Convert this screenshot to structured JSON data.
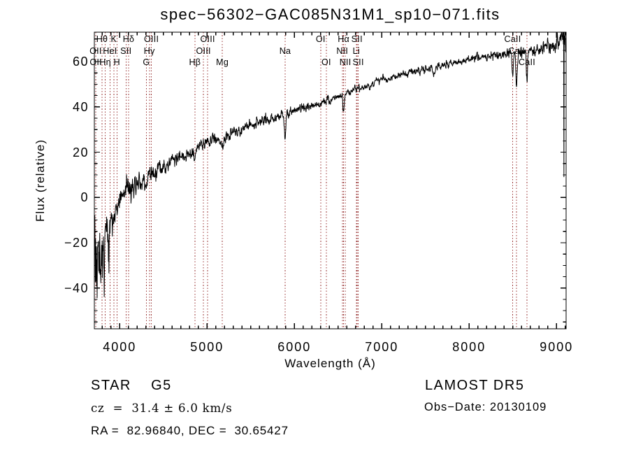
{
  "annotations": {
    "class_label": "STAR    G5",
    "cz_label": "cz  =  31.4 ± 6.0 km/s",
    "radec_label": "RA =  82.96840, DEC =  30.65427",
    "survey_label": "LAMOST DR5",
    "obs_date_label": "Obs−Date: 20130109"
  },
  "colors": {
    "background": "#ffffff",
    "axis": "#000000",
    "spectrum": "#000000",
    "line_marker": "#993333"
  },
  "chart_data": {
    "type": "line",
    "title": "spec−56302−GAC085N31M1_sp10−071.fits",
    "xlabel": "Wavelength (Å)",
    "ylabel": "Flux (relative)",
    "xlim": [
      3710,
      9110
    ],
    "ylim": [
      -58,
      73
    ],
    "x_ticks": [
      4000,
      5000,
      6000,
      7000,
      8000,
      9000
    ],
    "y_ticks": [
      -40,
      -20,
      0,
      20,
      40,
      60
    ],
    "x_minor_step": 100,
    "y_minor_step": 5,
    "grid": false,
    "spectral_line_markers": [
      {
        "label": "OII",
        "wavelength": 3725,
        "row": 2
      },
      {
        "label": "OII",
        "wavelength": 3727,
        "row": 3
      },
      {
        "label": "Hθ",
        "wavelength": 3798,
        "row": 1
      },
      {
        "label": "Hη",
        "wavelength": 3835,
        "row": 3
      },
      {
        "label": "HeI",
        "wavelength": 3889,
        "row": 2
      },
      {
        "label": "K",
        "wavelength": 3933,
        "row": 1
      },
      {
        "label": "H",
        "wavelength": 3968,
        "row": 3
      },
      {
        "label": "SII",
        "wavelength": 4072,
        "row": 2
      },
      {
        "label": "Hδ",
        "wavelength": 4102,
        "row": 1
      },
      {
        "label": "G",
        "wavelength": 4305,
        "row": 3
      },
      {
        "label": "Hγ",
        "wavelength": 4340,
        "row": 2
      },
      {
        "label": "OIII",
        "wavelength": 4363,
        "row": 1
      },
      {
        "label": "Hβ",
        "wavelength": 4861,
        "row": 3
      },
      {
        "label": "OIII",
        "wavelength": 4959,
        "row": 2
      },
      {
        "label": "OIII",
        "wavelength": 5007,
        "row": 1
      },
      {
        "label": "Mg",
        "wavelength": 5175,
        "row": 3
      },
      {
        "label": "Na",
        "wavelength": 5894,
        "row": 2
      },
      {
        "label": "OI",
        "wavelength": 6300,
        "row": 1
      },
      {
        "label": "OI",
        "wavelength": 6365,
        "row": 3
      },
      {
        "label": "NII",
        "wavelength": 6548,
        "row": 2
      },
      {
        "label": "Hα",
        "wavelength": 6563,
        "row": 1
      },
      {
        "label": "NII",
        "wavelength": 6583,
        "row": 3
      },
      {
        "label": "Li",
        "wavelength": 6708,
        "row": 2
      },
      {
        "label": "SII",
        "wavelength": 6716,
        "row": 1
      },
      {
        "label": "SII",
        "wavelength": 6731,
        "row": 3
      },
      {
        "label": "CaII",
        "wavelength": 8498,
        "row": 1
      },
      {
        "label": "CaII",
        "wavelength": 8542,
        "row": 2
      },
      {
        "label": "CaII",
        "wavelength": 8662,
        "row": 3
      }
    ],
    "series": [
      {
        "name": "observed-spectrum",
        "sample_step": 3,
        "continuum_points": [
          [
            3712,
            -10
          ],
          [
            3740,
            -18
          ],
          [
            3770,
            -24
          ],
          [
            3800,
            -20
          ],
          [
            3830,
            -16
          ],
          [
            3860,
            -13
          ],
          [
            3890,
            -11
          ],
          [
            3920,
            -9
          ],
          [
            3950,
            -6
          ],
          [
            3980,
            -3
          ],
          [
            4000,
            -1
          ],
          [
            4050,
            1
          ],
          [
            4100,
            3
          ],
          [
            4150,
            4
          ],
          [
            4200,
            5.5
          ],
          [
            4250,
            6.5
          ],
          [
            4300,
            7.5
          ],
          [
            4350,
            9
          ],
          [
            4400,
            10.5
          ],
          [
            4450,
            12
          ],
          [
            4500,
            13.5
          ],
          [
            4550,
            15
          ],
          [
            4600,
            16
          ],
          [
            4650,
            17
          ],
          [
            4700,
            18
          ],
          [
            4750,
            19
          ],
          [
            4800,
            20
          ],
          [
            4850,
            21
          ],
          [
            4900,
            22.5
          ],
          [
            4950,
            23.5
          ],
          [
            5000,
            24.5
          ],
          [
            5100,
            25.5
          ],
          [
            5200,
            27
          ],
          [
            5300,
            28.5
          ],
          [
            5400,
            30
          ],
          [
            5500,
            31.5
          ],
          [
            5600,
            33
          ],
          [
            5700,
            34.5
          ],
          [
            5800,
            35.5
          ],
          [
            5900,
            37
          ],
          [
            6000,
            38.5
          ],
          [
            6100,
            39.5
          ],
          [
            6200,
            40.5
          ],
          [
            6300,
            41.5
          ],
          [
            6400,
            43
          ],
          [
            6500,
            44.5
          ],
          [
            6600,
            46
          ],
          [
            6700,
            47.5
          ],
          [
            6800,
            49
          ],
          [
            6900,
            50.5
          ],
          [
            7000,
            52
          ],
          [
            7100,
            53
          ],
          [
            7200,
            54
          ],
          [
            7300,
            55
          ],
          [
            7400,
            56
          ],
          [
            7500,
            56.5
          ],
          [
            7600,
            57.5
          ],
          [
            7700,
            58.5
          ],
          [
            7800,
            59.5
          ],
          [
            7900,
            60
          ],
          [
            8000,
            60.5
          ],
          [
            8100,
            61.5
          ],
          [
            8200,
            62.5
          ],
          [
            8300,
            62.5
          ],
          [
            8400,
            63
          ],
          [
            8500,
            63.5
          ],
          [
            8600,
            64
          ],
          [
            8700,
            65
          ],
          [
            8800,
            65.5
          ],
          [
            8900,
            66.5
          ],
          [
            9000,
            67.5
          ],
          [
            9050,
            68
          ],
          [
            9108,
            69
          ]
        ],
        "absorption_features": [
          {
            "wavelength": 4305,
            "depth": 3.5,
            "sigma": 12
          },
          {
            "wavelength": 4861,
            "depth": 4,
            "sigma": 10
          },
          {
            "wavelength": 5175,
            "depth": 4,
            "sigma": 18
          },
          {
            "wavelength": 5893,
            "depth": 10,
            "sigma": 9
          },
          {
            "wavelength": 6563,
            "depth": 7,
            "sigma": 8
          },
          {
            "wavelength": 6867,
            "depth": 3,
            "sigma": 10
          },
          {
            "wavelength": 7605,
            "depth": 3,
            "sigma": 12
          },
          {
            "wavelength": 8498,
            "depth": 11,
            "sigma": 7
          },
          {
            "wavelength": 8542,
            "depth": 15,
            "sigma": 7
          },
          {
            "wavelength": 8662,
            "depth": 13,
            "sigma": 7
          }
        ],
        "noise_sigma_points": [
          [
            3712,
            26
          ],
          [
            3760,
            24
          ],
          [
            3800,
            16
          ],
          [
            3850,
            12
          ],
          [
            3900,
            8
          ],
          [
            3950,
            6
          ],
          [
            4000,
            5
          ],
          [
            4100,
            4
          ],
          [
            4300,
            3.5
          ],
          [
            4500,
            3
          ],
          [
            4800,
            2.6
          ],
          [
            5200,
            2.2
          ],
          [
            5600,
            1.9
          ],
          [
            6000,
            1.7
          ],
          [
            6500,
            1.5
          ],
          [
            7000,
            1.4
          ],
          [
            7500,
            1.4
          ],
          [
            8000,
            1.5
          ],
          [
            8400,
            1.7
          ],
          [
            8700,
            2.2
          ],
          [
            8900,
            2.6
          ],
          [
            9000,
            3.5
          ],
          [
            9060,
            5
          ],
          [
            9108,
            6
          ]
        ],
        "artifact_points": [
          [
            9082,
            73
          ],
          [
            9085,
            9
          ]
        ]
      }
    ]
  }
}
